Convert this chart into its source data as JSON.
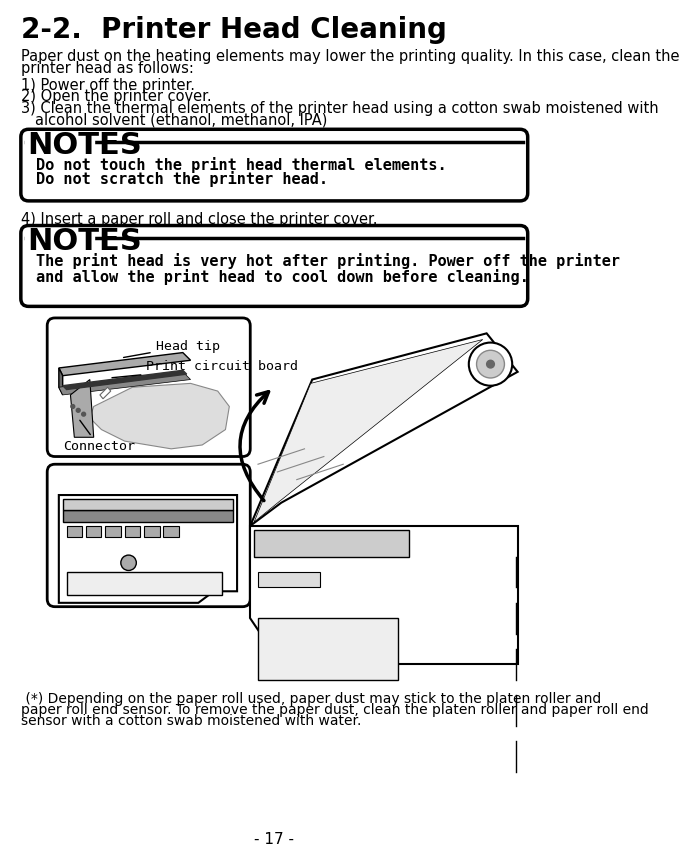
{
  "title": "2-2.  Printer Head Cleaning",
  "title_fontsize": 20,
  "bg_color": "#ffffff",
  "text_color": "#000000",
  "body_text1": "Paper dust on the heating elements may lower the printing quality. In this case, clean the",
  "body_text2": "printer head as follows:",
  "body_fontsize": 10.5,
  "step1": "1) Power off the printer.",
  "step2": "2) Open the printer cover.",
  "step3a": "3) Clean the thermal elements of the printer head using a cotton swab moistened with",
  "step3b": "   alcohol solvent (ethanol, methanol, IPA)",
  "step4": "4) Insert a paper roll and close the printer cover.",
  "notes1_title": "NOTES",
  "notes1_line1": "Do not touch the print head thermal elements.",
  "notes1_line2": "Do not scratch the printer head.",
  "notes2_title": "NOTES",
  "notes2_line1": "The print head is very hot after printing. Power off the printer",
  "notes2_line2": "and allow the print head to cool down before cleaning.",
  "footnote1": " (*) Depending on the paper roll used, paper dust may stick to the platen roller and",
  "footnote2": "paper roll end sensor. To remove the paper dust, clean the platen roller and paper roll end",
  "footnote3": "sensor with a cotton swab moistened with water.",
  "page_number": "- 17 -",
  "label1": "Head tip",
  "label2": "Print circuit board",
  "label3": "Connector",
  "step_fontsize": 10.5,
  "notes_title_fontsize": 22,
  "notes_body_fontsize": 11,
  "footnote_fontsize": 10
}
